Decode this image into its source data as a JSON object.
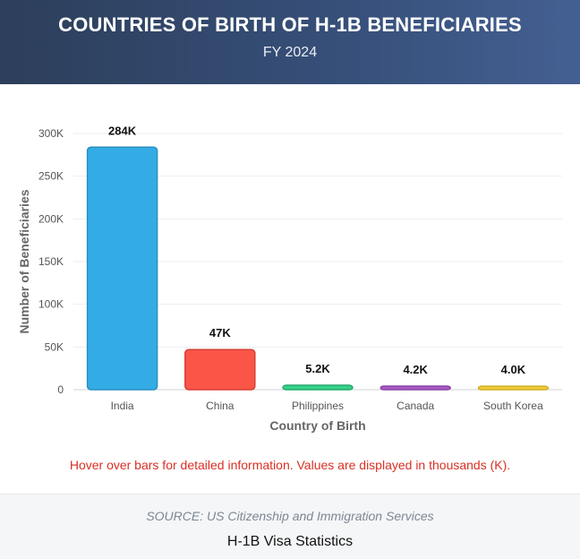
{
  "header": {
    "title": "COUNTRIES OF BIRTH OF H-1B BENEFICIARIES",
    "subtitle": "FY 2024"
  },
  "chart_data": {
    "type": "bar",
    "categories": [
      "India",
      "China",
      "Philippines",
      "Canada",
      "South Korea"
    ],
    "values": [
      284,
      47,
      5.2,
      4.2,
      4.0
    ],
    "data_labels": [
      "284K",
      "47K",
      "5.2K",
      "4.2K",
      "4.0K"
    ],
    "colors": [
      "#33ace6",
      "#fb5548",
      "#36d18a",
      "#a65cc4",
      "#f2cd3a"
    ],
    "border_colors": [
      "#2a8fc2",
      "#d63f33",
      "#27a86c",
      "#8a45a6",
      "#d1ad25"
    ],
    "xlabel": "Country of Birth",
    "ylabel": "Number of Beneficiaries",
    "ylim": [
      0,
      300
    ],
    "yticks": [
      0,
      50,
      100,
      150,
      200,
      250,
      300
    ],
    "ytick_labels": [
      "0",
      "50K",
      "100K",
      "150K",
      "200K",
      "250K",
      "300K"
    ],
    "grid": true,
    "legend": "none"
  },
  "note": "Hover over bars for detailed information. Values are displayed in thousands (K).",
  "footer": {
    "source": "SOURCE: US Citizenship and Immigration Services",
    "footnote": "H-1B Visa Statistics"
  }
}
